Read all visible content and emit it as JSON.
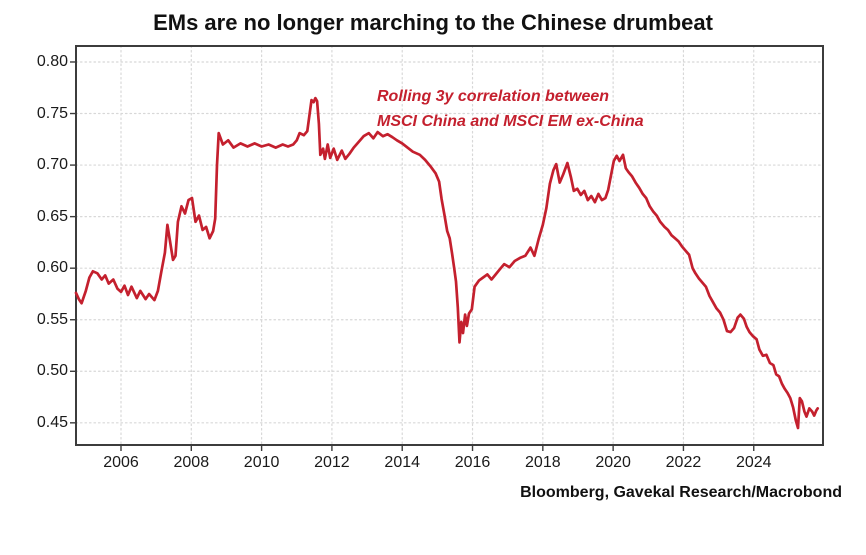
{
  "title": "EMs are no longer marching to the Chinese drumbeat",
  "annotation": {
    "line1": "Rolling 3y correlation between",
    "line2": "MSCI China and MSCI EM ex-China"
  },
  "source": "Bloomberg, Gavekal Research/Macrobond",
  "colors": {
    "line": "#c4202e",
    "annotation": "#c4202e",
    "text": "#1a1a1a",
    "border": "#3c3c3c",
    "grid": "#d8d8d8",
    "background": "#ffffff"
  },
  "chart_data": {
    "type": "line",
    "title": "EMs are no longer marching to the Chinese drumbeat",
    "xlabel": "",
    "ylabel": "",
    "xlim": [
      2004.72,
      2025.97
    ],
    "ylim": [
      0.4285,
      0.8155
    ],
    "xticks": [
      2006,
      2008,
      2010,
      2012,
      2014,
      2016,
      2018,
      2020,
      2022,
      2024
    ],
    "xtick_labels": [
      "2006",
      "2008",
      "2010",
      "2012",
      "2014",
      "2016",
      "2018",
      "2020",
      "2022",
      "2024"
    ],
    "yticks": [
      0.45,
      0.5,
      0.55,
      0.6,
      0.65,
      0.7,
      0.75,
      0.8
    ],
    "ytick_labels": [
      "0.45",
      "0.50",
      "0.55",
      "0.60",
      "0.65",
      "0.70",
      "0.75",
      "0.80"
    ],
    "grid": "dotted, both axes, at every tick",
    "legend_position": "none (red in-plot annotation text instead)",
    "series": [
      {
        "name": "Rolling 3y correlation between MSCI China and MSCI EM ex-China",
        "color": "#c4202e",
        "points": [
          [
            2004.72,
            0.576
          ],
          [
            2004.8,
            0.57
          ],
          [
            2004.88,
            0.566
          ],
          [
            2005.0,
            0.578
          ],
          [
            2005.1,
            0.591
          ],
          [
            2005.2,
            0.597
          ],
          [
            2005.33,
            0.595
          ],
          [
            2005.45,
            0.589
          ],
          [
            2005.55,
            0.593
          ],
          [
            2005.65,
            0.585
          ],
          [
            2005.78,
            0.589
          ],
          [
            2005.9,
            0.58
          ],
          [
            2006.0,
            0.577
          ],
          [
            2006.1,
            0.583
          ],
          [
            2006.2,
            0.574
          ],
          [
            2006.3,
            0.582
          ],
          [
            2006.45,
            0.571
          ],
          [
            2006.55,
            0.578
          ],
          [
            2006.7,
            0.57
          ],
          [
            2006.8,
            0.575
          ],
          [
            2006.95,
            0.569
          ],
          [
            2007.05,
            0.578
          ],
          [
            2007.15,
            0.597
          ],
          [
            2007.25,
            0.615
          ],
          [
            2007.32,
            0.642
          ],
          [
            2007.4,
            0.625
          ],
          [
            2007.48,
            0.608
          ],
          [
            2007.55,
            0.612
          ],
          [
            2007.62,
            0.645
          ],
          [
            2007.72,
            0.66
          ],
          [
            2007.82,
            0.653
          ],
          [
            2007.92,
            0.666
          ],
          [
            2008.02,
            0.668
          ],
          [
            2008.12,
            0.645
          ],
          [
            2008.22,
            0.651
          ],
          [
            2008.32,
            0.637
          ],
          [
            2008.42,
            0.64
          ],
          [
            2008.52,
            0.629
          ],
          [
            2008.62,
            0.636
          ],
          [
            2008.68,
            0.648
          ],
          [
            2008.73,
            0.7
          ],
          [
            2008.78,
            0.731
          ],
          [
            2008.9,
            0.72
          ],
          [
            2009.05,
            0.724
          ],
          [
            2009.2,
            0.717
          ],
          [
            2009.4,
            0.721
          ],
          [
            2009.6,
            0.718
          ],
          [
            2009.8,
            0.721
          ],
          [
            2010.0,
            0.718
          ],
          [
            2010.2,
            0.72
          ],
          [
            2010.4,
            0.717
          ],
          [
            2010.6,
            0.72
          ],
          [
            2010.75,
            0.718
          ],
          [
            2010.9,
            0.72
          ],
          [
            2011.0,
            0.724
          ],
          [
            2011.08,
            0.731
          ],
          [
            2011.2,
            0.729
          ],
          [
            2011.3,
            0.733
          ],
          [
            2011.36,
            0.748
          ],
          [
            2011.42,
            0.763
          ],
          [
            2011.48,
            0.761
          ],
          [
            2011.53,
            0.765
          ],
          [
            2011.58,
            0.762
          ],
          [
            2011.63,
            0.74
          ],
          [
            2011.67,
            0.71
          ],
          [
            2011.75,
            0.716
          ],
          [
            2011.8,
            0.706
          ],
          [
            2011.88,
            0.72
          ],
          [
            2011.95,
            0.707
          ],
          [
            2012.05,
            0.716
          ],
          [
            2012.15,
            0.705
          ],
          [
            2012.28,
            0.714
          ],
          [
            2012.38,
            0.706
          ],
          [
            2012.5,
            0.711
          ],
          [
            2012.62,
            0.717
          ],
          [
            2012.75,
            0.722
          ],
          [
            2012.9,
            0.728
          ],
          [
            2013.05,
            0.731
          ],
          [
            2013.18,
            0.726
          ],
          [
            2013.3,
            0.732
          ],
          [
            2013.45,
            0.728
          ],
          [
            2013.58,
            0.73
          ],
          [
            2013.72,
            0.727
          ],
          [
            2013.85,
            0.724
          ],
          [
            2014.0,
            0.721
          ],
          [
            2014.15,
            0.717
          ],
          [
            2014.3,
            0.713
          ],
          [
            2014.5,
            0.71
          ],
          [
            2014.65,
            0.705
          ],
          [
            2014.8,
            0.699
          ],
          [
            2014.95,
            0.692
          ],
          [
            2015.05,
            0.684
          ],
          [
            2015.12,
            0.667
          ],
          [
            2015.2,
            0.652
          ],
          [
            2015.28,
            0.636
          ],
          [
            2015.35,
            0.629
          ],
          [
            2015.42,
            0.614
          ],
          [
            2015.48,
            0.6
          ],
          [
            2015.53,
            0.587
          ],
          [
            2015.58,
            0.562
          ],
          [
            2015.63,
            0.528
          ],
          [
            2015.68,
            0.548
          ],
          [
            2015.73,
            0.537
          ],
          [
            2015.79,
            0.555
          ],
          [
            2015.84,
            0.544
          ],
          [
            2015.9,
            0.556
          ],
          [
            2015.98,
            0.56
          ],
          [
            2016.06,
            0.582
          ],
          [
            2016.18,
            0.588
          ],
          [
            2016.3,
            0.591
          ],
          [
            2016.42,
            0.594
          ],
          [
            2016.54,
            0.589
          ],
          [
            2016.66,
            0.594
          ],
          [
            2016.78,
            0.599
          ],
          [
            2016.9,
            0.604
          ],
          [
            2017.05,
            0.601
          ],
          [
            2017.2,
            0.607
          ],
          [
            2017.35,
            0.61
          ],
          [
            2017.5,
            0.612
          ],
          [
            2017.65,
            0.62
          ],
          [
            2017.76,
            0.612
          ],
          [
            2017.88,
            0.628
          ],
          [
            2018.0,
            0.642
          ],
          [
            2018.1,
            0.658
          ],
          [
            2018.2,
            0.682
          ],
          [
            2018.3,
            0.695
          ],
          [
            2018.38,
            0.701
          ],
          [
            2018.48,
            0.683
          ],
          [
            2018.58,
            0.691
          ],
          [
            2018.7,
            0.702
          ],
          [
            2018.8,
            0.688
          ],
          [
            2018.88,
            0.675
          ],
          [
            2018.98,
            0.677
          ],
          [
            2019.08,
            0.671
          ],
          [
            2019.18,
            0.675
          ],
          [
            2019.28,
            0.666
          ],
          [
            2019.38,
            0.67
          ],
          [
            2019.48,
            0.664
          ],
          [
            2019.58,
            0.672
          ],
          [
            2019.68,
            0.666
          ],
          [
            2019.78,
            0.668
          ],
          [
            2019.86,
            0.676
          ],
          [
            2019.94,
            0.69
          ],
          [
            2020.02,
            0.704
          ],
          [
            2020.1,
            0.709
          ],
          [
            2020.18,
            0.704
          ],
          [
            2020.28,
            0.71
          ],
          [
            2020.36,
            0.697
          ],
          [
            2020.44,
            0.693
          ],
          [
            2020.54,
            0.689
          ],
          [
            2020.64,
            0.683
          ],
          [
            2020.74,
            0.678
          ],
          [
            2020.84,
            0.672
          ],
          [
            2020.94,
            0.668
          ],
          [
            2021.04,
            0.66
          ],
          [
            2021.14,
            0.655
          ],
          [
            2021.24,
            0.651
          ],
          [
            2021.34,
            0.645
          ],
          [
            2021.46,
            0.64
          ],
          [
            2021.56,
            0.637
          ],
          [
            2021.66,
            0.632
          ],
          [
            2021.76,
            0.629
          ],
          [
            2021.86,
            0.626
          ],
          [
            2021.96,
            0.621
          ],
          [
            2022.06,
            0.617
          ],
          [
            2022.16,
            0.613
          ],
          [
            2022.26,
            0.6
          ],
          [
            2022.34,
            0.595
          ],
          [
            2022.44,
            0.59
          ],
          [
            2022.54,
            0.586
          ],
          [
            2022.64,
            0.582
          ],
          [
            2022.74,
            0.573
          ],
          [
            2022.84,
            0.567
          ],
          [
            2022.94,
            0.561
          ],
          [
            2023.04,
            0.557
          ],
          [
            2023.14,
            0.55
          ],
          [
            2023.24,
            0.539
          ],
          [
            2023.34,
            0.538
          ],
          [
            2023.44,
            0.542
          ],
          [
            2023.54,
            0.552
          ],
          [
            2023.62,
            0.555
          ],
          [
            2023.72,
            0.551
          ],
          [
            2023.8,
            0.543
          ],
          [
            2023.88,
            0.538
          ],
          [
            2023.98,
            0.534
          ],
          [
            2024.08,
            0.531
          ],
          [
            2024.16,
            0.521
          ],
          [
            2024.26,
            0.515
          ],
          [
            2024.36,
            0.516
          ],
          [
            2024.46,
            0.508
          ],
          [
            2024.56,
            0.506
          ],
          [
            2024.64,
            0.497
          ],
          [
            2024.72,
            0.495
          ],
          [
            2024.8,
            0.488
          ],
          [
            2024.88,
            0.483
          ],
          [
            2024.96,
            0.479
          ],
          [
            2025.04,
            0.474
          ],
          [
            2025.12,
            0.465
          ],
          [
            2025.2,
            0.452
          ],
          [
            2025.26,
            0.445
          ],
          [
            2025.31,
            0.474
          ],
          [
            2025.37,
            0.471
          ],
          [
            2025.44,
            0.461
          ],
          [
            2025.5,
            0.456
          ],
          [
            2025.58,
            0.464
          ],
          [
            2025.66,
            0.461
          ],
          [
            2025.72,
            0.457
          ],
          [
            2025.78,
            0.462
          ],
          [
            2025.82,
            0.464
          ]
        ]
      }
    ]
  }
}
